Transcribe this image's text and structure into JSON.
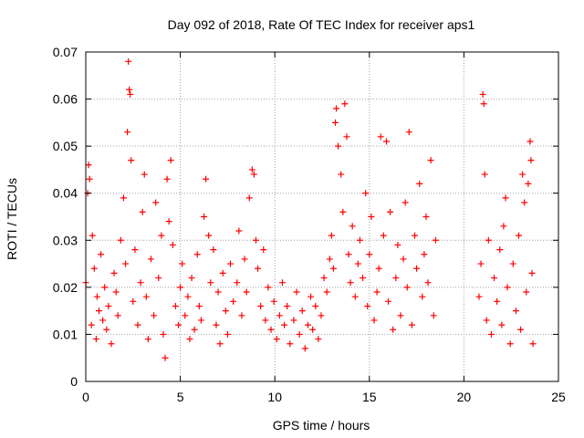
{
  "chart_data": {
    "type": "scatter",
    "title": "Day 092 of 2018, Rate Of TEC Index for receiver aps1",
    "xlabel": "GPS time / hours",
    "ylabel": "ROTI / TECUs",
    "xlim": [
      0,
      25
    ],
    "ylim": [
      0,
      0.07
    ],
    "x_ticks": [
      0,
      5,
      10,
      15,
      20,
      25
    ],
    "x_tick_labels": [
      "0",
      "5",
      "10",
      "15",
      "20",
      "25"
    ],
    "y_ticks": [
      0,
      0.01,
      0.02,
      0.03,
      0.04,
      0.05,
      0.06,
      0.07
    ],
    "y_tick_labels": [
      "0",
      "0.01",
      "0.02",
      "0.03",
      "0.04",
      "0.05",
      "0.06",
      "0.07"
    ],
    "grid": true,
    "marker": "plus",
    "color": "#ff0000",
    "series": [
      {
        "points": [
          [
            0.0,
            0.021
          ],
          [
            0.1,
            0.04
          ],
          [
            0.15,
            0.046
          ],
          [
            0.2,
            0.043
          ],
          [
            0.3,
            0.012
          ],
          [
            0.35,
            0.031
          ],
          [
            0.45,
            0.024
          ],
          [
            0.55,
            0.009
          ],
          [
            0.6,
            0.018
          ],
          [
            0.7,
            0.015
          ],
          [
            0.8,
            0.027
          ],
          [
            0.9,
            0.013
          ],
          [
            1.0,
            0.02
          ],
          [
            1.1,
            0.011
          ],
          [
            1.2,
            0.016
          ],
          [
            1.35,
            0.008
          ],
          [
            1.5,
            0.023
          ],
          [
            1.6,
            0.019
          ],
          [
            1.7,
            0.014
          ],
          [
            1.85,
            0.03
          ],
          [
            2.0,
            0.039
          ],
          [
            2.1,
            0.025
          ],
          [
            2.2,
            0.053
          ],
          [
            2.25,
            0.068
          ],
          [
            2.3,
            0.062
          ],
          [
            2.35,
            0.061
          ],
          [
            2.4,
            0.047
          ],
          [
            2.5,
            0.017
          ],
          [
            2.6,
            0.028
          ],
          [
            2.75,
            0.012
          ],
          [
            2.9,
            0.021
          ],
          [
            3.0,
            0.036
          ],
          [
            3.1,
            0.044
          ],
          [
            3.2,
            0.018
          ],
          [
            3.3,
            0.009
          ],
          [
            3.45,
            0.026
          ],
          [
            3.6,
            0.014
          ],
          [
            3.7,
            0.038
          ],
          [
            3.85,
            0.022
          ],
          [
            4.0,
            0.031
          ],
          [
            4.1,
            0.01
          ],
          [
            4.2,
            0.005
          ],
          [
            4.3,
            0.043
          ],
          [
            4.4,
            0.034
          ],
          [
            4.5,
            0.047
          ],
          [
            4.6,
            0.029
          ],
          [
            4.75,
            0.016
          ],
          [
            4.9,
            0.012
          ],
          [
            5.0,
            0.02
          ],
          [
            5.1,
            0.025
          ],
          [
            5.25,
            0.014
          ],
          [
            5.4,
            0.018
          ],
          [
            5.5,
            0.009
          ],
          [
            5.6,
            0.022
          ],
          [
            5.75,
            0.011
          ],
          [
            5.9,
            0.027
          ],
          [
            6.0,
            0.016
          ],
          [
            6.1,
            0.013
          ],
          [
            6.25,
            0.035
          ],
          [
            6.35,
            0.043
          ],
          [
            6.5,
            0.031
          ],
          [
            6.6,
            0.021
          ],
          [
            6.75,
            0.028
          ],
          [
            6.9,
            0.012
          ],
          [
            7.0,
            0.019
          ],
          [
            7.1,
            0.008
          ],
          [
            7.25,
            0.023
          ],
          [
            7.4,
            0.015
          ],
          [
            7.5,
            0.01
          ],
          [
            7.65,
            0.025
          ],
          [
            7.8,
            0.017
          ],
          [
            8.0,
            0.021
          ],
          [
            8.1,
            0.032
          ],
          [
            8.25,
            0.014
          ],
          [
            8.4,
            0.026
          ],
          [
            8.5,
            0.019
          ],
          [
            8.65,
            0.039
          ],
          [
            8.8,
            0.045
          ],
          [
            8.9,
            0.044
          ],
          [
            9.0,
            0.03
          ],
          [
            9.1,
            0.024
          ],
          [
            9.25,
            0.016
          ],
          [
            9.4,
            0.028
          ],
          [
            9.5,
            0.013
          ],
          [
            9.65,
            0.02
          ],
          [
            9.8,
            0.011
          ],
          [
            9.95,
            0.017
          ],
          [
            10.1,
            0.009
          ],
          [
            10.25,
            0.014
          ],
          [
            10.4,
            0.021
          ],
          [
            10.5,
            0.012
          ],
          [
            10.65,
            0.016
          ],
          [
            10.8,
            0.008
          ],
          [
            11.0,
            0.013
          ],
          [
            11.15,
            0.019
          ],
          [
            11.3,
            0.01
          ],
          [
            11.45,
            0.015
          ],
          [
            11.6,
            0.007
          ],
          [
            11.75,
            0.012
          ],
          [
            11.9,
            0.018
          ],
          [
            12.0,
            0.011
          ],
          [
            12.15,
            0.016
          ],
          [
            12.3,
            0.009
          ],
          [
            12.45,
            0.014
          ],
          [
            12.6,
            0.022
          ],
          [
            12.75,
            0.019
          ],
          [
            12.9,
            0.026
          ],
          [
            13.0,
            0.031
          ],
          [
            13.1,
            0.024
          ],
          [
            13.2,
            0.055
          ],
          [
            13.25,
            0.058
          ],
          [
            13.35,
            0.05
          ],
          [
            13.5,
            0.044
          ],
          [
            13.6,
            0.036
          ],
          [
            13.7,
            0.059
          ],
          [
            13.8,
            0.052
          ],
          [
            13.9,
            0.027
          ],
          [
            14.0,
            0.021
          ],
          [
            14.1,
            0.033
          ],
          [
            14.25,
            0.018
          ],
          [
            14.4,
            0.025
          ],
          [
            14.5,
            0.03
          ],
          [
            14.65,
            0.022
          ],
          [
            14.8,
            0.04
          ],
          [
            14.9,
            0.016
          ],
          [
            15.0,
            0.027
          ],
          [
            15.1,
            0.035
          ],
          [
            15.25,
            0.013
          ],
          [
            15.4,
            0.019
          ],
          [
            15.5,
            0.024
          ],
          [
            15.6,
            0.052
          ],
          [
            15.75,
            0.031
          ],
          [
            15.9,
            0.051
          ],
          [
            16.0,
            0.017
          ],
          [
            16.1,
            0.036
          ],
          [
            16.25,
            0.011
          ],
          [
            16.4,
            0.022
          ],
          [
            16.5,
            0.029
          ],
          [
            16.65,
            0.014
          ],
          [
            16.8,
            0.026
          ],
          [
            16.9,
            0.038
          ],
          [
            17.0,
            0.02
          ],
          [
            17.1,
            0.053
          ],
          [
            17.25,
            0.012
          ],
          [
            17.4,
            0.031
          ],
          [
            17.5,
            0.024
          ],
          [
            17.65,
            0.042
          ],
          [
            17.8,
            0.018
          ],
          [
            17.9,
            0.027
          ],
          [
            18.0,
            0.035
          ],
          [
            18.1,
            0.021
          ],
          [
            18.25,
            0.047
          ],
          [
            18.4,
            0.014
          ],
          [
            18.5,
            0.03
          ],
          [
            20.8,
            0.018
          ],
          [
            20.9,
            0.025
          ],
          [
            21.0,
            0.061
          ],
          [
            21.05,
            0.059
          ],
          [
            21.1,
            0.044
          ],
          [
            21.2,
            0.013
          ],
          [
            21.3,
            0.03
          ],
          [
            21.45,
            0.01
          ],
          [
            21.6,
            0.022
          ],
          [
            21.75,
            0.017
          ],
          [
            21.9,
            0.028
          ],
          [
            22.0,
            0.012
          ],
          [
            22.1,
            0.033
          ],
          [
            22.2,
            0.039
          ],
          [
            22.3,
            0.02
          ],
          [
            22.45,
            0.008
          ],
          [
            22.6,
            0.025
          ],
          [
            22.75,
            0.015
          ],
          [
            22.9,
            0.031
          ],
          [
            23.0,
            0.011
          ],
          [
            23.1,
            0.044
          ],
          [
            23.2,
            0.038
          ],
          [
            23.3,
            0.019
          ],
          [
            23.4,
            0.042
          ],
          [
            23.5,
            0.051
          ],
          [
            23.55,
            0.047
          ],
          [
            23.6,
            0.023
          ],
          [
            23.65,
            0.008
          ]
        ]
      }
    ]
  }
}
